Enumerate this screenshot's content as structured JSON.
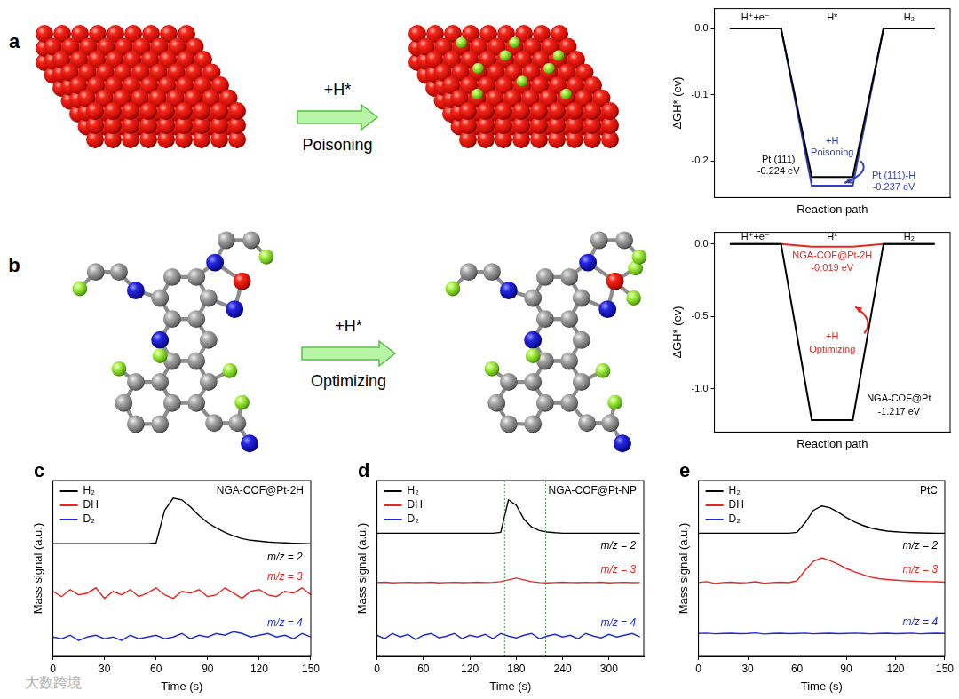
{
  "figure": {
    "diagrams": [
      {
        "panel": "a",
        "arrow_label": "+H*",
        "arrow_caption": "Poisoning"
      },
      {
        "panel": "b",
        "arrow_label": "+H*",
        "arrow_caption": "Optimizing"
      }
    ],
    "watermark": "大数跨境"
  },
  "chart_data": [
    {
      "type": "line",
      "x_label": "Reaction path",
      "y_label": "ΔGH* (ev)",
      "x": [
        0,
        1,
        1.6,
        2.4,
        3,
        4
      ],
      "series": [
        {
          "color": "#000000",
          "values": [
            0,
            0,
            -0.224,
            -0.224,
            0,
            0
          ]
        },
        {
          "color": "#2f3fbf",
          "values": [
            0,
            0,
            -0.237,
            -0.237,
            0,
            0
          ]
        }
      ],
      "xlim": [
        -0.3,
        4.3
      ],
      "ylim": [
        -0.255,
        0.03
      ],
      "yticks": [
        {
          "value": 0,
          "label": "0.0"
        },
        -0.1,
        -0.2
      ],
      "tick_labels": "y",
      "grid": false,
      "annotations": [
        {
          "text": "H⁺+e⁻",
          "x": 0.5,
          "y": 0.016,
          "color": "#000000"
        },
        {
          "text": "H*",
          "x": 2,
          "y": 0.016,
          "color": "#000000"
        },
        {
          "text": "H₂",
          "x": 3.5,
          "y": 0.016,
          "color": "#000000"
        },
        {
          "text": "Pt (111)",
          "x": 0.95,
          "y": -0.198,
          "color": "#000000"
        },
        {
          "text": "-0.224 eV",
          "x": 0.95,
          "y": -0.216,
          "color": "#000000"
        },
        {
          "text": "Pt (111)-H",
          "x": 3.2,
          "y": -0.222,
          "color": "#2f3fbf"
        },
        {
          "text": "-0.237 eV",
          "x": 3.2,
          "y": -0.24,
          "color": "#2f3fbf"
        },
        {
          "text": "+H",
          "x": 2,
          "y": -0.17,
          "color": "#2f3fbf"
        },
        {
          "text": "Poisoning",
          "x": 2,
          "y": -0.188,
          "color": "#2f3fbf"
        }
      ]
    },
    {
      "type": "line",
      "x_label": "Reaction path",
      "y_label": "ΔGH* (ev)",
      "x": [
        0,
        1,
        1.6,
        2.4,
        3,
        4
      ],
      "series": [
        {
          "color": "#000000",
          "values": [
            0,
            0,
            -1.217,
            -1.217,
            0,
            0
          ]
        },
        {
          "color": "#e8251f",
          "values": [
            0,
            0,
            -0.019,
            -0.019,
            0,
            0
          ]
        }
      ],
      "xlim": [
        -0.3,
        4.3
      ],
      "ylim": [
        -1.3,
        0.08
      ],
      "yticks": [
        {
          "value": 0,
          "label": "0.0"
        },
        -0.5,
        {
          "value": -1,
          "label": "-1.0"
        }
      ],
      "tick_labels": "y",
      "grid": false,
      "annotations": [
        {
          "text": "H⁺+e⁻",
          "x": 0.5,
          "y": 0.045,
          "color": "#000000"
        },
        {
          "text": "H*",
          "x": 2,
          "y": 0.045,
          "color": "#000000"
        },
        {
          "text": "H₂",
          "x": 3.5,
          "y": 0.045,
          "color": "#000000"
        },
        {
          "text": "NGA-COF@Pt-2H",
          "x": 2,
          "y": -0.08,
          "color": "#e8251f"
        },
        {
          "text": "-0.019 eV",
          "x": 2,
          "y": -0.17,
          "color": "#e8251f"
        },
        {
          "text": "+H",
          "x": 2,
          "y": -0.64,
          "color": "#e8251f"
        },
        {
          "text": "Optimizing",
          "x": 2,
          "y": -0.73,
          "color": "#e8251f"
        },
        {
          "text": "NGA-COF@Pt",
          "x": 3.3,
          "y": -1.07,
          "color": "#000000"
        },
        {
          "text": "-1.217 eV",
          "x": 3.3,
          "y": -1.16,
          "color": "#000000"
        }
      ]
    },
    {
      "panel": "c",
      "type": "line",
      "title": "NGA-COF@Pt-2H",
      "x_label": "Time (s)",
      "y_label": "Mass signal (a.u.)",
      "x": [
        0,
        5,
        10,
        15,
        20,
        25,
        30,
        35,
        40,
        45,
        50,
        55,
        60,
        65,
        70,
        75,
        80,
        85,
        90,
        95,
        100,
        105,
        110,
        115,
        120,
        125,
        130,
        135,
        140,
        145,
        150
      ],
      "series": [
        {
          "name": "H₂",
          "color": "#000000",
          "values": [
            6.4,
            6.4,
            6.4,
            6.4,
            6.4,
            6.4,
            6.4,
            6.4,
            6.4,
            6.4,
            6.4,
            6.4,
            6.45,
            8.3,
            9.0,
            8.9,
            8.5,
            8.0,
            7.6,
            7.3,
            7.05,
            6.85,
            6.7,
            6.6,
            6.55,
            6.5,
            6.47,
            6.45,
            6.43,
            6.42,
            6.41
          ]
        },
        {
          "name": "DH",
          "color": "#e8251f",
          "values": [
            3.7,
            3.4,
            3.8,
            3.5,
            3.6,
            3.9,
            3.3,
            3.7,
            3.5,
            3.8,
            3.4,
            3.6,
            3.9,
            3.5,
            3.3,
            3.7,
            3.6,
            3.8,
            3.4,
            3.5,
            3.9,
            3.6,
            3.3,
            3.7,
            3.8,
            3.5,
            3.4,
            3.7,
            3.6,
            3.9,
            3.5
          ]
        },
        {
          "name": "D₂",
          "color": "#1f2bd6",
          "values": [
            1.1,
            1.0,
            1.2,
            0.9,
            1.1,
            1.2,
            1.0,
            1.1,
            0.9,
            1.2,
            1.0,
            1.1,
            1.2,
            1.0,
            1.1,
            1.3,
            1.0,
            1.2,
            1.1,
            1.3,
            1.2,
            1.4,
            1.3,
            1.1,
            1.2,
            1.3,
            1.1,
            1.2,
            1.0,
            1.3,
            1.1
          ]
        }
      ],
      "xlim": [
        0,
        150
      ],
      "xticks": [
        0,
        30,
        60,
        90,
        120,
        150
      ],
      "ylim": [
        0,
        10
      ],
      "tick_labels": "x",
      "legend": "upper left",
      "grid": false,
      "annotations": [
        {
          "text": "m/z = 2",
          "x": 135,
          "y": 5.6,
          "color": "#000000"
        },
        {
          "text": "m/z = 3",
          "x": 135,
          "y": 4.5,
          "color": "#e8251f"
        },
        {
          "text": "m/z = 4",
          "x": 135,
          "y": 1.9,
          "color": "#1f2bd6"
        }
      ]
    },
    {
      "panel": "d",
      "type": "line",
      "title": "NGA-COF@Pt-NP",
      "x_label": "Time (s)",
      "y_label": "Mass signal (a.u.)",
      "x": [
        0,
        10,
        20,
        30,
        40,
        50,
        60,
        70,
        80,
        90,
        100,
        110,
        120,
        130,
        140,
        150,
        160,
        170,
        180,
        190,
        200,
        210,
        220,
        230,
        240,
        250,
        260,
        270,
        280,
        290,
        300,
        310,
        320,
        330,
        340
      ],
      "series": [
        {
          "name": "H₂",
          "color": "#000000",
          "values": [
            7.0,
            7.0,
            7.0,
            7.0,
            7.0,
            7.0,
            7.0,
            7.0,
            7.0,
            7.0,
            7.0,
            7.0,
            7.0,
            7.0,
            7.0,
            7.0,
            7.05,
            8.9,
            8.6,
            7.8,
            7.35,
            7.15,
            7.07,
            7.03,
            7.0,
            7.0,
            7.0,
            7.0,
            7.0,
            7.0,
            7.0,
            7.0,
            7.0,
            7.0,
            7.0
          ]
        },
        {
          "name": "DH",
          "color": "#e8251f",
          "values": [
            4.2,
            4.22,
            4.18,
            4.2,
            4.21,
            4.19,
            4.2,
            4.22,
            4.18,
            4.2,
            4.21,
            4.19,
            4.2,
            4.22,
            4.2,
            4.21,
            4.25,
            4.35,
            4.45,
            4.35,
            4.25,
            4.2,
            4.18,
            4.2,
            4.22,
            4.2,
            4.19,
            4.21,
            4.2,
            4.22,
            4.18,
            4.2,
            4.21,
            4.19,
            4.2
          ]
        },
        {
          "name": "D₂",
          "color": "#1f2bd6",
          "values": [
            1.2,
            1.0,
            1.3,
            1.1,
            1.25,
            0.95,
            1.2,
            1.3,
            1.05,
            1.15,
            1.3,
            1.0,
            1.2,
            1.1,
            1.25,
            1.0,
            1.3,
            1.15,
            1.05,
            1.2,
            1.3,
            1.0,
            1.15,
            1.25,
            1.1,
            1.2,
            1.0,
            1.3,
            1.15,
            1.05,
            1.25,
            1.1,
            1.2,
            1.3,
            1.1
          ]
        }
      ],
      "xlim": [
        0,
        345
      ],
      "xticks": [
        0,
        60,
        120,
        180,
        240,
        300
      ],
      "ylim": [
        0,
        10
      ],
      "tick_labels": "x",
      "legend": "upper left",
      "grid": false,
      "vlines": [
        165,
        218
      ],
      "annotations": [
        {
          "text": "m/z = 2",
          "x": 312,
          "y": 6.3,
          "color": "#000000"
        },
        {
          "text": "m/z = 3",
          "x": 312,
          "y": 4.9,
          "color": "#e8251f"
        },
        {
          "text": "m/z = 4",
          "x": 312,
          "y": 1.9,
          "color": "#1f2bd6"
        }
      ]
    },
    {
      "panel": "e",
      "type": "line",
      "title": "PtC",
      "x_label": "Time (s)",
      "y_label": "Mass signal (a.u.)",
      "x": [
        0,
        5,
        10,
        15,
        20,
        25,
        30,
        35,
        40,
        45,
        50,
        55,
        60,
        65,
        70,
        75,
        80,
        85,
        90,
        95,
        100,
        105,
        110,
        115,
        120,
        125,
        130,
        135,
        140,
        145,
        150
      ],
      "series": [
        {
          "name": "H₂",
          "color": "#000000",
          "values": [
            7.0,
            7.0,
            7.0,
            7.0,
            7.0,
            7.0,
            7.0,
            7.0,
            7.0,
            7.0,
            7.0,
            7.0,
            7.05,
            7.6,
            8.3,
            8.55,
            8.45,
            8.2,
            7.9,
            7.65,
            7.45,
            7.3,
            7.2,
            7.12,
            7.08,
            7.05,
            7.03,
            7.02,
            7.01,
            7.0,
            7.0
          ]
        },
        {
          "name": "DH",
          "color": "#e8251f",
          "values": [
            4.2,
            4.25,
            4.15,
            4.2,
            4.22,
            4.18,
            4.2,
            4.24,
            4.16,
            4.2,
            4.22,
            4.19,
            4.3,
            4.9,
            5.4,
            5.6,
            5.45,
            5.25,
            5.0,
            4.8,
            4.65,
            4.5,
            4.42,
            4.37,
            4.33,
            4.3,
            4.28,
            4.26,
            4.25,
            4.24,
            4.22
          ]
        },
        {
          "name": "D₂",
          "color": "#1f2bd6",
          "values": [
            1.3,
            1.32,
            1.28,
            1.3,
            1.31,
            1.29,
            1.3,
            1.33,
            1.27,
            1.3,
            1.31,
            1.29,
            1.3,
            1.32,
            1.28,
            1.3,
            1.31,
            1.29,
            1.3,
            1.32,
            1.3,
            1.28,
            1.3,
            1.31,
            1.29,
            1.3,
            1.32,
            1.28,
            1.3,
            1.31,
            1.3
          ]
        }
      ],
      "xlim": [
        0,
        150
      ],
      "xticks": [
        0,
        30,
        60,
        90,
        120,
        150
      ],
      "ylim": [
        0,
        10
      ],
      "tick_labels": "x",
      "legend": "upper left",
      "grid": false,
      "annotations": [
        {
          "text": "m/z = 2",
          "x": 135,
          "y": 6.3,
          "color": "#000000"
        },
        {
          "text": "m/z = 3",
          "x": 135,
          "y": 4.9,
          "color": "#e8251f"
        },
        {
          "text": "m/z = 4",
          "x": 135,
          "y": 1.95,
          "color": "#1f2bd6"
        }
      ]
    }
  ]
}
